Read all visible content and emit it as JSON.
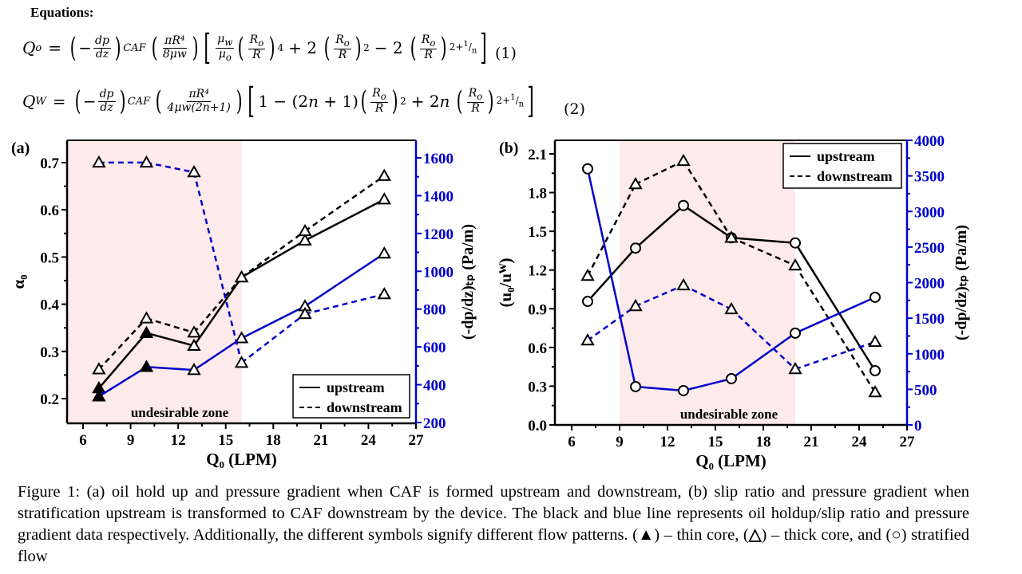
{
  "heading": "Equations:",
  "equations": [
    {
      "lhs": "Q",
      "lhs_sub": "o",
      "term1_num": "dp",
      "term1_den": "dz",
      "term1_sub": "CAF",
      "term2_num": "πR⁴",
      "term2_den": "8μw",
      "bracket_text": "μw/μo (Ro/R)⁴ + 2 (Ro/R)² − 2 (Ro/R)^(2+1/n)",
      "number": "(1)"
    },
    {
      "lhs": "Q",
      "lhs_sub": "W",
      "term1_num": "dp",
      "term1_den": "dz",
      "term1_sub": "CAF",
      "term2_num": "πR⁴",
      "term2_den": "4μw(2n+1)",
      "bracket_text": "1 − (2n + 1) (Ro/R)² + 2n (Ro/R)^(2+1/n)",
      "number": "(2)"
    }
  ],
  "chart_data": [
    {
      "panel_label": "(a)",
      "type": "line",
      "title": "",
      "xlabel": "Q0 (LPM)",
      "ylabel": "α0",
      "y2label": "(-dp/dz)tp (Pa/m)",
      "xlim": [
        5,
        27
      ],
      "ylim": [
        0.15,
        0.75
      ],
      "y2lim": [
        200,
        1700
      ],
      "xticks": [
        "6",
        "9",
        "12",
        "15",
        "18",
        "21",
        "24",
        "27"
      ],
      "yticks": [
        "0.2",
        "0.3",
        "0.4",
        "0.5",
        "0.6",
        "0.7"
      ],
      "y2ticks": [
        "200",
        "400",
        "600",
        "800",
        "1000",
        "1200",
        "1400",
        "1600"
      ],
      "shaded_region": {
        "x_from": 5,
        "x_to": 16,
        "label": "undesirable zone",
        "color": "#fdeaea"
      },
      "legend": {
        "position": "bottom-right",
        "entries": [
          "upstream",
          "downstream"
        ]
      },
      "x": [
        7,
        10,
        13,
        16,
        20,
        25
      ],
      "series": [
        {
          "name": "upstream oil holdup",
          "axis": "left",
          "color": "#000000",
          "dash": false,
          "values": [
            0.222,
            0.339,
            0.312,
            0.457,
            0.535,
            0.622
          ],
          "markers": [
            "tri-filled",
            "tri-filled",
            "tri-open",
            "tri-open",
            "tri-open",
            "tri-open"
          ]
        },
        {
          "name": "downstream oil holdup",
          "axis": "left",
          "color": "#000000",
          "dash": true,
          "values": [
            0.262,
            0.37,
            0.34,
            0.457,
            0.555,
            0.672
          ],
          "markers": [
            "tri-open",
            "tri-open",
            "tri-open",
            "tri-open",
            "tri-open",
            "tri-open"
          ]
        },
        {
          "name": "upstream pressure gradient",
          "axis": "right",
          "color": "#0000cc",
          "dash": false,
          "values": [
            338,
            494,
            478,
            646,
            815,
            1094
          ],
          "markers": [
            "tri-filled",
            "tri-filled",
            "tri-open",
            "tri-open",
            "tri-open",
            "tri-open"
          ]
        },
        {
          "name": "downstream pressure gradient",
          "axis": "right",
          "color": "#0000cc",
          "dash": true,
          "values": [
            1575,
            1575,
            1524,
            516,
            774,
            879
          ],
          "markers": [
            "tri-open",
            "tri-open",
            "tri-open",
            "tri-open",
            "tri-open",
            "tri-open"
          ]
        }
      ]
    },
    {
      "panel_label": "(b)",
      "type": "line",
      "title": "",
      "xlabel": "Q0 (LPM)",
      "ylabel": "(u0/uW)",
      "y2label": "(-dp/dz)tp (Pa/m)",
      "xlim": [
        5,
        27
      ],
      "ylim": [
        0,
        2.2
      ],
      "y2lim": [
        0,
        4000
      ],
      "xticks": [
        "6",
        "9",
        "12",
        "15",
        "18",
        "21",
        "24",
        "27"
      ],
      "yticks": [
        "0.0",
        "0.3",
        "0.6",
        "0.9",
        "1.2",
        "1.5",
        "1.8",
        "2.1"
      ],
      "y2ticks": [
        "0",
        "500",
        "1000",
        "1500",
        "2000",
        "2500",
        "3000",
        "3500",
        "4000"
      ],
      "shaded_region": {
        "x_from": 9,
        "x_to": 20,
        "label": "undesirable zone",
        "color": "#fdeaea"
      },
      "legend": {
        "position": "top-right",
        "entries": [
          "upstream",
          "downstream"
        ]
      },
      "x": [
        7,
        10,
        13,
        16,
        20,
        25
      ],
      "series": [
        {
          "name": "upstream slip ratio",
          "axis": "left",
          "color": "#000000",
          "dash": false,
          "values": [
            0.957,
            1.37,
            1.7,
            1.45,
            1.41,
            0.42
          ],
          "markers": [
            "circle",
            "circle",
            "circle",
            "circle",
            "circle",
            "circle"
          ]
        },
        {
          "name": "downstream slip ratio",
          "axis": "left",
          "color": "#000000",
          "dash": true,
          "values": [
            1.155,
            1.865,
            2.045,
            1.45,
            1.235,
            0.253
          ],
          "markers": [
            "tri-open",
            "tri-open",
            "tri-open",
            "tri-open",
            "tri-open",
            "tri-open"
          ]
        },
        {
          "name": "upstream pressure gradient",
          "axis": "right",
          "color": "#0000cc",
          "dash": false,
          "values": [
            3600,
            538,
            482,
            650,
            1290,
            1794
          ],
          "markers": [
            "circle",
            "circle",
            "circle",
            "circle",
            "circle",
            "circle"
          ]
        },
        {
          "name": "downstream pressure gradient",
          "axis": "right",
          "color": "#0000cc",
          "dash": true,
          "values": [
            1188,
            1670,
            1962,
            1626,
            785,
            1166
          ],
          "markers": [
            "tri-open",
            "tri-open",
            "tri-open",
            "tri-open",
            "tri-open",
            "tri-open"
          ]
        }
      ]
    }
  ],
  "caption": {
    "text_main": "Figure 1: (a) oil hold up and pressure gradient when CAF is formed upstream and downstream, (b) slip ratio and pressure gradient when stratification upstream is transformed to CAF downstream by the device. The black and blue line represents oil holdup/slip ratio and pressure gradient data respectively. Additionally, the different symbols signify different flow patterns. (",
    "sym_thin": "▲",
    "text_thin": ") – thin core, (",
    "sym_thick": "△",
    "text_thick": ") – thick core, and (",
    "sym_strat": "○",
    "text_strat": ") stratified flow"
  }
}
